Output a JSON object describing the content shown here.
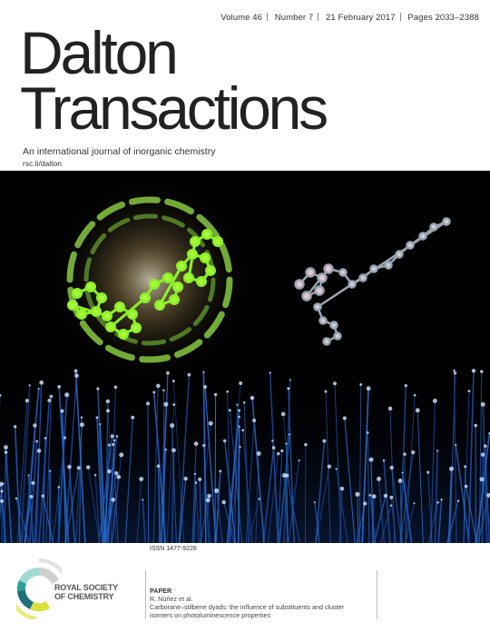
{
  "header": {
    "volume": "Volume 46",
    "number": "Number 7",
    "date": "21 February 2017",
    "pages": "Pages 2033–2388"
  },
  "journal": {
    "title_line1": "Dalton",
    "title_line2": "Transactions",
    "subtitle": "An international journal of inorganic chemistry",
    "url": "rsc.li/dalton"
  },
  "footer": {
    "issn": "ISSN 1477-9226",
    "society_line1": "ROYAL SOCIETY",
    "society_line2": "OF CHEMISTRY",
    "paper_label": "PAPER",
    "authors": "R. Núñez et al.",
    "paper_title_line1": "Carborane–stilbene dyads: the influence of substituents and cluster",
    "paper_title_line2": "isomers on photoluminescence properties"
  },
  "colors": {
    "arc_light": "#b8f07a",
    "arc_mid": "#8fdc3c",
    "arc_dark": "#4caa1e",
    "molecule_green": "#8ef02a",
    "fiber_blue": "#2b6fd6",
    "logo_teal": "#2f9e9a",
    "logo_yellow": "#d8e23a"
  }
}
